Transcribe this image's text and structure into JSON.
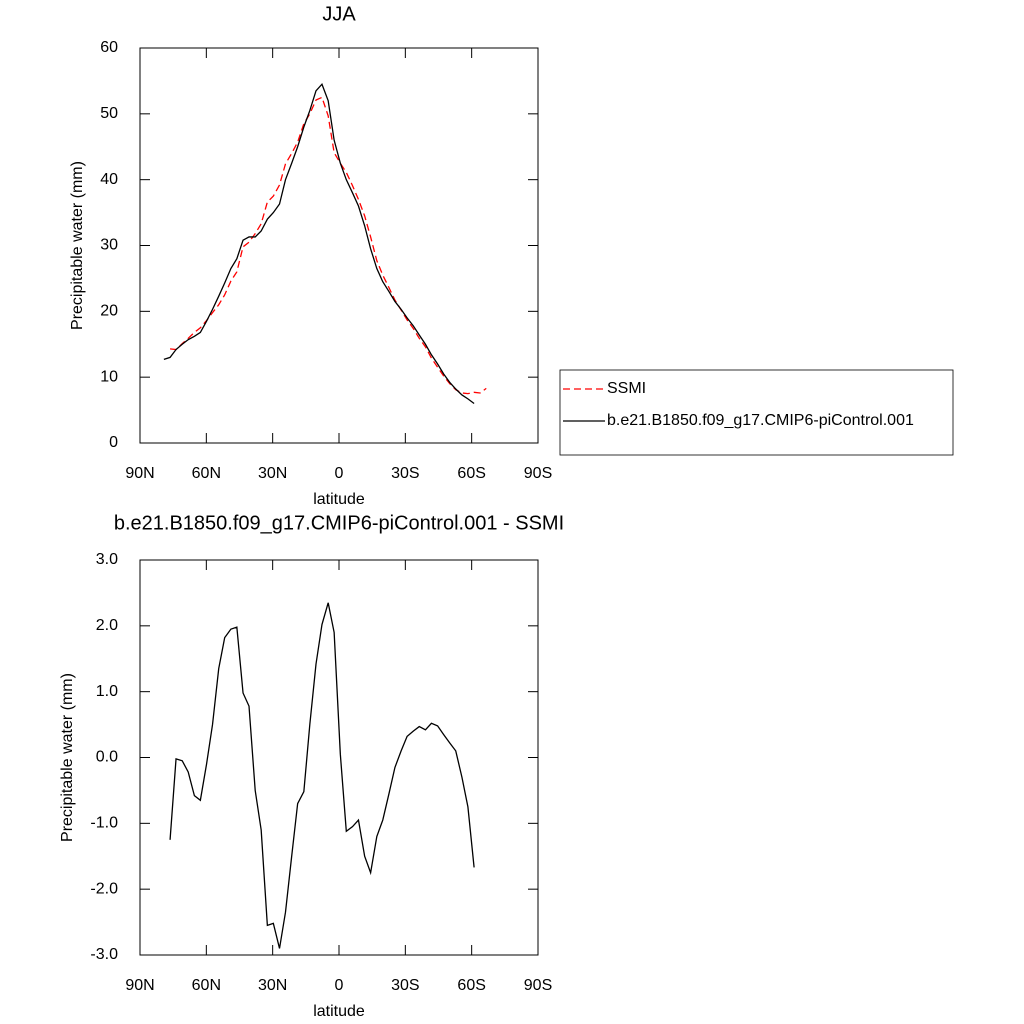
{
  "chart_data": [
    {
      "type": "line",
      "title": "JJA",
      "xlabel": "latitude",
      "ylabel": "Precipitable water (mm)",
      "x": [
        79.2,
        76.4,
        73.7,
        70.9,
        68.2,
        65.4,
        62.7,
        59.9,
        57.2,
        54.4,
        51.7,
        48.9,
        46.2,
        43.4,
        40.7,
        37.9,
        35.2,
        32.4,
        29.7,
        26.9,
        24.2,
        21.4,
        18.7,
        15.9,
        13.2,
        10.4,
        7.7,
        4.9,
        2.2,
        -0.6,
        -3.3,
        -6.1,
        -8.8,
        -11.6,
        -14.3,
        -17.1,
        -19.8,
        -22.6,
        -25.3,
        -28.1,
        -30.8,
        -33.6,
        -36.3,
        -39.1,
        -41.8,
        -44.6,
        -47.3,
        -50.1,
        -52.8,
        -55.6,
        -58.3,
        -61.1,
        -63.8,
        -66.6
      ],
      "series": [
        {
          "name": "SSMI",
          "color": "#ff0000",
          "line_style": "dashed",
          "values": [
            null,
            14.3,
            14.2,
            15.1,
            15.9,
            16.8,
            17.5,
            18.6,
            19.8,
            21.0,
            22.5,
            24.6,
            26.0,
            29.8,
            30.5,
            31.8,
            33.3,
            36.6,
            37.5,
            39.2,
            42.4,
            44.0,
            45.7,
            48.5,
            50.0,
            52.1,
            52.5,
            49.7,
            44.1,
            42.5,
            41.1,
            39.1,
            37.0,
            34.5,
            31.3,
            27.7,
            25.5,
            23.6,
            21.7,
            20.2,
            18.7,
            17.4,
            15.9,
            14.6,
            12.9,
            11.5,
            10.2,
            9.0,
            8.1,
            7.6,
            7.5,
            7.7,
            7.6,
            8.3
          ]
        },
        {
          "name": "b.e21.B1850.f09_g17.CMIP6-piControl.001",
          "color": "#000000",
          "line_style": "solid",
          "values": [
            12.7,
            13.0,
            14.2,
            15.0,
            15.7,
            16.2,
            16.8,
            18.5,
            20.3,
            22.3,
            24.3,
            26.5,
            28.0,
            30.8,
            31.3,
            31.3,
            32.2,
            34.0,
            35.0,
            36.3,
            40.0,
            42.5,
            45.0,
            48.0,
            50.5,
            53.5,
            54.5,
            52.0,
            46.0,
            42.5,
            40.0,
            38.0,
            36.0,
            33.0,
            29.5,
            26.5,
            24.5,
            23.0,
            21.5,
            20.3,
            19.0,
            17.8,
            16.4,
            15.0,
            13.4,
            12.0,
            10.5,
            9.2,
            8.2,
            7.3,
            6.7,
            6.0,
            null,
            null
          ]
        }
      ],
      "xlim": [
        90,
        -90
      ],
      "xticks": [
        {
          "value": 90,
          "label": "90N"
        },
        {
          "value": 60,
          "label": "60N"
        },
        {
          "value": 30,
          "label": "30N"
        },
        0,
        {
          "value": -30,
          "label": "30S"
        },
        {
          "value": -60,
          "label": "60S"
        },
        {
          "value": -90,
          "label": "90S"
        }
      ],
      "ylim": [
        0,
        60
      ],
      "yticks": [
        0,
        10,
        20,
        30,
        40,
        50,
        60
      ],
      "legend": "outside-right"
    },
    {
      "type": "line",
      "title": "b.e21.B1850.f09_g17.CMIP6-piControl.001 - SSMI",
      "xlabel": "latitude",
      "ylabel": "Precipitable water (mm)",
      "x": [
        79.2,
        76.4,
        73.7,
        70.9,
        68.2,
        65.4,
        62.7,
        59.9,
        57.2,
        54.4,
        51.7,
        48.9,
        46.2,
        43.4,
        40.7,
        37.9,
        35.2,
        32.4,
        29.7,
        26.9,
        24.2,
        21.4,
        18.7,
        15.9,
        13.2,
        10.4,
        7.7,
        4.9,
        2.2,
        -0.6,
        -3.3,
        -6.1,
        -8.8,
        -11.6,
        -14.3,
        -17.1,
        -19.8,
        -22.6,
        -25.3,
        -28.1,
        -30.8,
        -33.6,
        -36.3,
        -39.1,
        -41.8,
        -44.6,
        -47.3,
        -50.1,
        -52.8,
        -55.6,
        -58.3,
        -61.1,
        -63.8,
        -66.6
      ],
      "series": [
        {
          "color": "#000000",
          "line_style": "solid",
          "values": [
            null,
            -1.25,
            -0.02,
            -0.05,
            -0.22,
            -0.58,
            -0.65,
            -0.1,
            0.5,
            1.35,
            1.82,
            1.95,
            1.98,
            0.98,
            0.78,
            -0.5,
            -1.1,
            -2.55,
            -2.52,
            -2.9,
            -2.35,
            -1.5,
            -0.7,
            -0.52,
            0.5,
            1.42,
            2.02,
            2.35,
            1.9,
            0.05,
            -1.12,
            -1.05,
            -0.95,
            -1.5,
            -1.75,
            -1.2,
            -0.95,
            -0.55,
            -0.15,
            0.1,
            0.32,
            0.4,
            0.47,
            0.42,
            0.52,
            0.48,
            0.35,
            0.22,
            0.1,
            -0.3,
            -0.75,
            -1.67,
            null,
            null
          ]
        }
      ],
      "xlim": [
        90,
        -90
      ],
      "xticks": [
        {
          "value": 90,
          "label": "90N"
        },
        {
          "value": 60,
          "label": "60N"
        },
        {
          "value": 30,
          "label": "30N"
        },
        0,
        {
          "value": -30,
          "label": "30S"
        },
        {
          "value": -60,
          "label": "60S"
        },
        {
          "value": -90,
          "label": "90S"
        }
      ],
      "ylim": [
        -3,
        3
      ],
      "yticks": [
        {
          "value": -3,
          "label": "-3.0"
        },
        {
          "value": -2,
          "label": "-2.0"
        },
        {
          "value": -1,
          "label": "-1.0"
        },
        {
          "value": 0,
          "label": "0.0"
        },
        {
          "value": 1,
          "label": "1.0"
        },
        {
          "value": 2,
          "label": "2.0"
        },
        {
          "value": 3,
          "label": "3.0"
        }
      ]
    }
  ]
}
